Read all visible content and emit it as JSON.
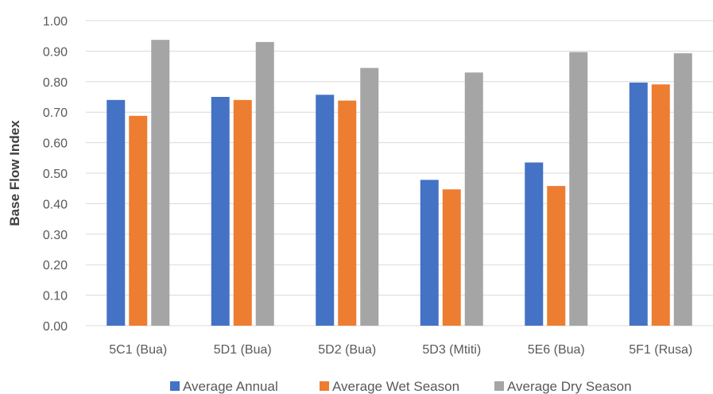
{
  "chart_data": {
    "type": "bar",
    "title": "",
    "xlabel": "",
    "ylabel": "Base Flow Index",
    "ylim": [
      0,
      1.0
    ],
    "yticks": [
      "0.00",
      "0.10",
      "0.20",
      "0.30",
      "0.40",
      "0.50",
      "0.60",
      "0.70",
      "0.80",
      "0.90",
      "1.00"
    ],
    "categories": [
      "5C1 (Bua)",
      "5D1 (Bua)",
      "5D2 (Bua)",
      "5D3 (Mtiti)",
      "5E6 (Bua)",
      "5F1 (Rusa)"
    ],
    "grid": true,
    "legend_position": "bottom",
    "series": [
      {
        "name": "Average Annual",
        "color": "#4472C4",
        "values": [
          0.74,
          0.75,
          0.757,
          0.478,
          0.535,
          0.797
        ]
      },
      {
        "name": "Average Wet Season",
        "color": "#ED7D31",
        "values": [
          0.688,
          0.74,
          0.738,
          0.447,
          0.458,
          0.791
        ]
      },
      {
        "name": "Average Dry Season",
        "color": "#A5A5A5",
        "values": [
          0.937,
          0.93,
          0.845,
          0.83,
          0.897,
          0.893
        ]
      }
    ]
  }
}
